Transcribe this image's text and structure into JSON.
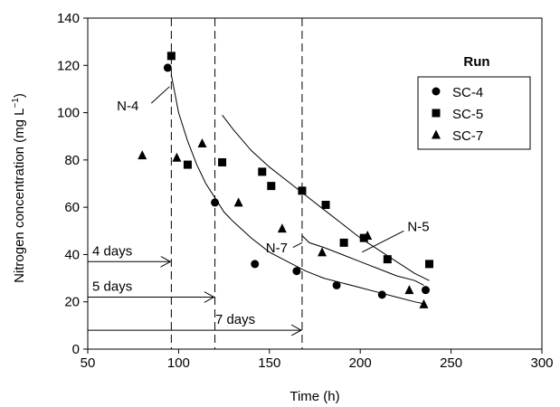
{
  "chart_data": {
    "type": "scatter",
    "xlabel": "Time (h)",
    "ylabel_main": "Nitrogen concentration (mg L",
    "ylabel_exp": "−1",
    "ylabel_close": ")",
    "xlim": [
      50,
      300
    ],
    "ylim": [
      0,
      140
    ],
    "xticks": [
      "50",
      "100",
      "150",
      "200",
      "250",
      "300"
    ],
    "yticks": [
      "0",
      "20",
      "40",
      "60",
      "80",
      "100",
      "120",
      "140"
    ],
    "legend": {
      "title": "Run",
      "position": "upper-right"
    },
    "series": [
      {
        "name": "SC-4",
        "marker": "circle",
        "points": [
          [
            94,
            119
          ],
          [
            120,
            62
          ],
          [
            142,
            36
          ],
          [
            165,
            33
          ],
          [
            187,
            27
          ],
          [
            212,
            23
          ],
          [
            236,
            25
          ]
        ]
      },
      {
        "name": "SC-5",
        "marker": "square",
        "points": [
          [
            96,
            124
          ],
          [
            105,
            78
          ],
          [
            124,
            79
          ],
          [
            146,
            75
          ],
          [
            151,
            69
          ],
          [
            168,
            67
          ],
          [
            181,
            61
          ],
          [
            191,
            45
          ],
          [
            202,
            47
          ],
          [
            215,
            38
          ],
          [
            238,
            36
          ]
        ]
      },
      {
        "name": "SC-7",
        "marker": "triangle",
        "points": [
          [
            80,
            82
          ],
          [
            99,
            81
          ],
          [
            113,
            87
          ],
          [
            133,
            62
          ],
          [
            157,
            51
          ],
          [
            179,
            41
          ],
          [
            204,
            48
          ],
          [
            227,
            25
          ],
          [
            235,
            19
          ]
        ]
      }
    ],
    "fitted_curves": [
      {
        "label": "N-4",
        "points": [
          [
            96,
            116
          ],
          [
            100,
            100
          ],
          [
            105,
            88
          ],
          [
            110,
            78
          ],
          [
            115,
            70
          ],
          [
            120,
            64
          ],
          [
            125,
            58
          ],
          [
            130,
            54
          ],
          [
            140,
            47
          ],
          [
            150,
            41
          ],
          [
            160,
            37
          ],
          [
            170,
            33
          ],
          [
            180,
            30
          ],
          [
            190,
            28
          ],
          [
            200,
            26
          ],
          [
            210,
            24
          ],
          [
            220,
            22
          ],
          [
            230,
            20
          ],
          [
            236,
            19
          ]
        ]
      },
      {
        "label": "N-5",
        "points": [
          [
            124,
            99
          ],
          [
            130,
            93
          ],
          [
            140,
            84
          ],
          [
            150,
            77
          ],
          [
            160,
            71
          ],
          [
            170,
            65
          ],
          [
            180,
            59
          ],
          [
            190,
            53
          ],
          [
            200,
            47
          ],
          [
            210,
            42
          ],
          [
            220,
            37
          ],
          [
            230,
            32
          ],
          [
            238,
            29
          ]
        ]
      },
      {
        "label": "N-7",
        "points": [
          [
            168,
            48
          ],
          [
            172,
            45
          ],
          [
            180,
            43
          ],
          [
            190,
            40
          ],
          [
            200,
            37
          ],
          [
            210,
            34
          ],
          [
            220,
            31
          ],
          [
            230,
            29
          ],
          [
            235,
            27
          ]
        ]
      }
    ],
    "vertical_lines_x": [
      96,
      120,
      168
    ],
    "arrows": [
      {
        "label": "4 days",
        "y": 37,
        "x_from": 50,
        "x_to": 96
      },
      {
        "label": "5 days",
        "y": 22,
        "x_from": 50,
        "x_to": 120
      },
      {
        "label": "7 days",
        "y": 8,
        "x_from": 50,
        "x_to": 168
      }
    ],
    "curve_labels": [
      {
        "text": "N-4",
        "x": 66,
        "y": 101,
        "line_to": [
          95,
          111
        ]
      },
      {
        "text": "N-5",
        "x": 226,
        "y": 50,
        "line_to": [
          201,
          42
        ]
      },
      {
        "text": "N-7",
        "x": 148,
        "y": 41,
        "line_to": [
          168,
          45
        ]
      }
    ],
    "colors": {
      "ink": "#000000",
      "background": "#ffffff"
    }
  }
}
